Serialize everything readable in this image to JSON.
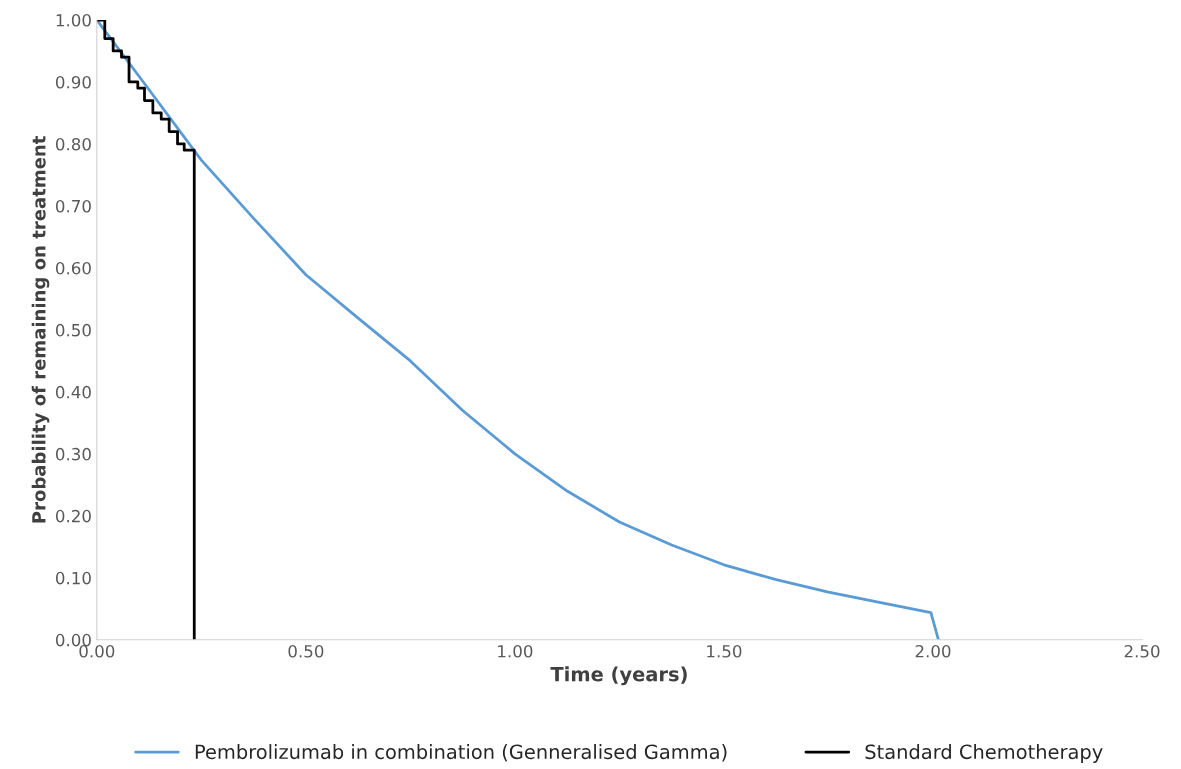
{
  "chart_data": {
    "type": "line",
    "xlabel": "Time (years)",
    "ylabel": "Probability of remaining on treatment",
    "xlim": [
      0,
      2.5
    ],
    "ylim": [
      0,
      1.0
    ],
    "xticks": [
      {
        "value": 0,
        "label": "0.00"
      },
      {
        "value": 0.5,
        "label": "0.50"
      },
      {
        "value": 1.0,
        "label": "1.00"
      },
      {
        "value": 1.5,
        "label": "1.50"
      },
      {
        "value": 2.0,
        "label": "2.00"
      },
      {
        "value": 2.5,
        "label": "2.50"
      }
    ],
    "yticks": [
      {
        "value": 0,
        "label": "0.00"
      },
      {
        "value": 0.1,
        "label": "0.10"
      },
      {
        "value": 0.2,
        "label": "0.20"
      },
      {
        "value": 0.3,
        "label": "0.30"
      },
      {
        "value": 0.4,
        "label": "0.40"
      },
      {
        "value": 0.5,
        "label": "0.50"
      },
      {
        "value": 0.6,
        "label": "0.60"
      },
      {
        "value": 0.7,
        "label": "0.70"
      },
      {
        "value": 0.8,
        "label": "0.80"
      },
      {
        "value": 0.9,
        "label": "0.90"
      },
      {
        "value": 1.0,
        "label": "1.00"
      }
    ],
    "grid": false,
    "legend": "bottom",
    "series": [
      {
        "name": "Pembrolizumab in combination (Genneralised Gamma)",
        "color": "#5b9bd5",
        "x": [
          0,
          0.1,
          0.25,
          0.375,
          0.5,
          0.625,
          0.75,
          0.875,
          1.0,
          1.125,
          1.25,
          1.375,
          1.5,
          1.625,
          1.75,
          1.875,
          1.995,
          2.013
        ],
        "values": [
          1.0,
          0.91,
          0.774,
          0.68,
          0.589,
          0.519,
          0.45,
          0.37,
          0.3,
          0.24,
          0.19,
          0.153,
          0.121,
          0.097,
          0.077,
          0.06,
          0.044,
          0
        ]
      },
      {
        "name": "Standard Chemotherapy",
        "type": "step",
        "color": "#000000",
        "x": [
          0,
          0.019,
          0.039,
          0.059,
          0.077,
          0.098,
          0.114,
          0.134,
          0.154,
          0.173,
          0.193,
          0.209,
          0.233
        ],
        "values": [
          1.0,
          0.97,
          0.95,
          0.94,
          0.9,
          0.89,
          0.87,
          0.85,
          0.84,
          0.82,
          0.8,
          0.79,
          0
        ]
      }
    ]
  }
}
